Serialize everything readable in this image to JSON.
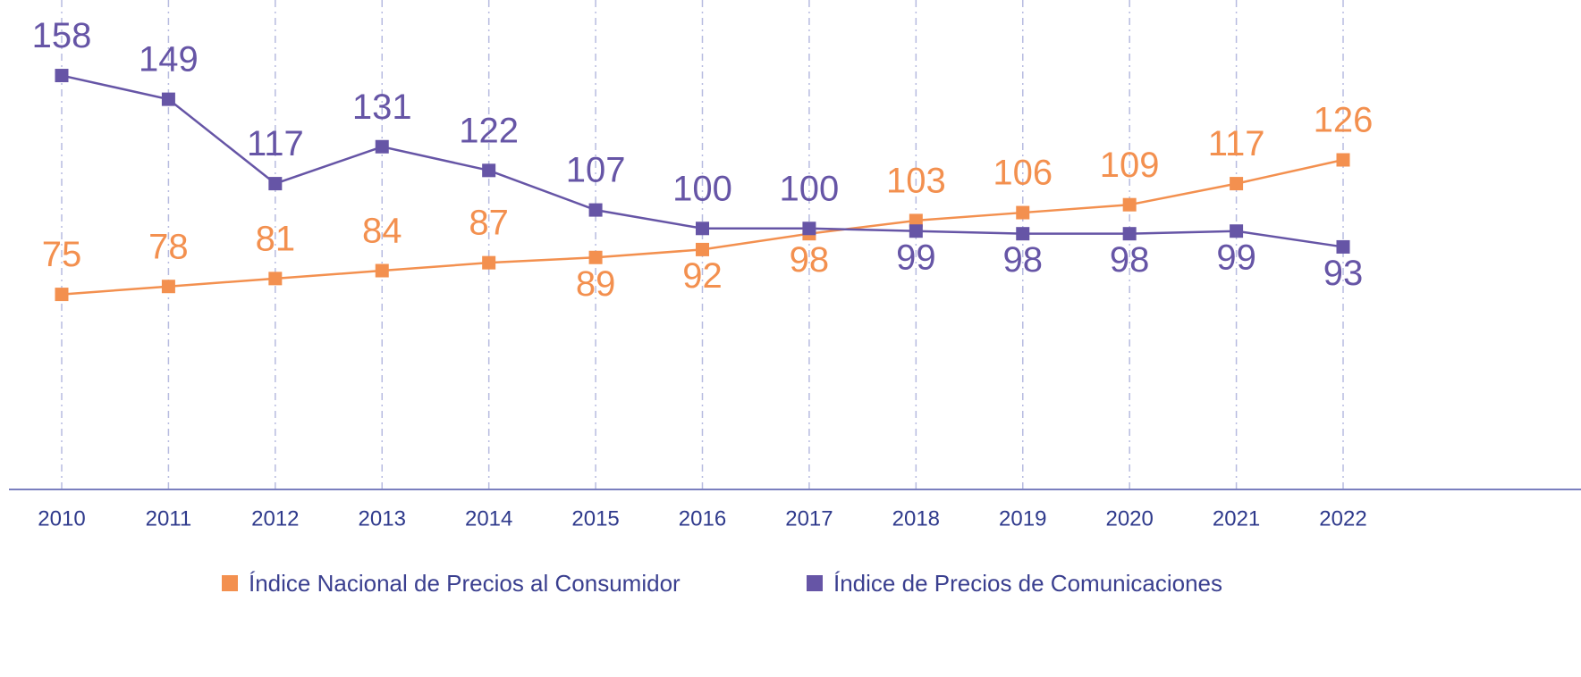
{
  "chart_data": {
    "type": "line",
    "categories": [
      "2010",
      "2011",
      "2012",
      "2013",
      "2014",
      "2015",
      "2016",
      "2017",
      "2018",
      "2019",
      "2020",
      "2021",
      "2022"
    ],
    "series": [
      {
        "name": "Índice Nacional de Precios al Consumidor",
        "color": "#f3904f",
        "values": [
          75,
          78,
          81,
          84,
          87,
          89,
          92,
          98,
          103,
          106,
          109,
          117,
          126
        ]
      },
      {
        "name": "Índice de Precios de Comunicaciones",
        "color": "#6655a6",
        "values": [
          158,
          149,
          117,
          131,
          122,
          107,
          100,
          100,
          99,
          98,
          98,
          99,
          93
        ]
      }
    ],
    "ylim": [
      0,
      180
    ],
    "grid": true,
    "legend": "bottom"
  }
}
